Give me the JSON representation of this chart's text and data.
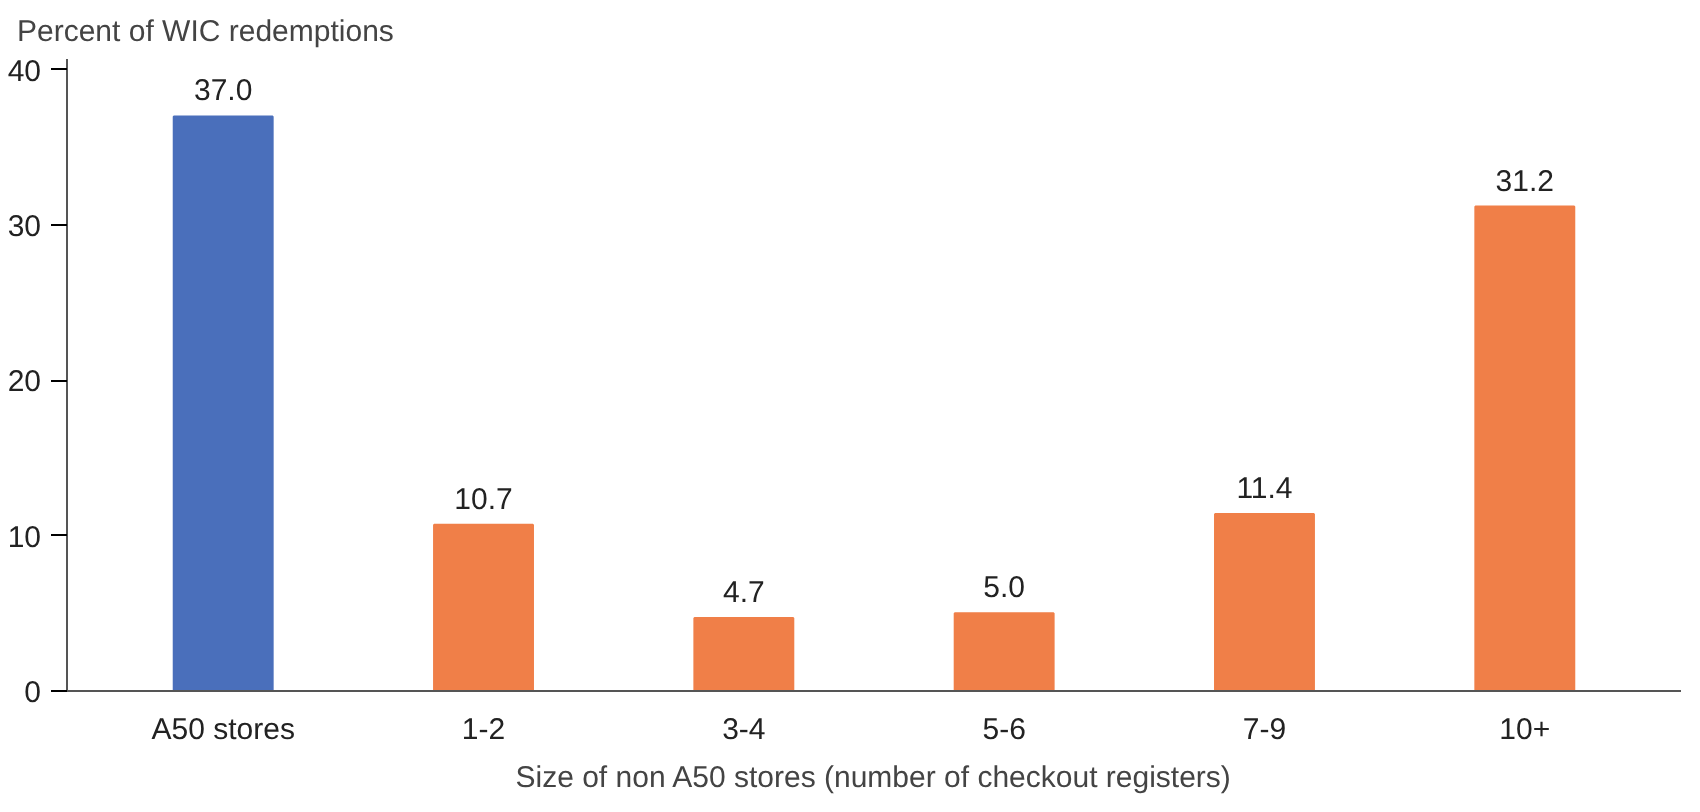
{
  "chart_data": {
    "type": "bar",
    "ylabel": "Percent of WIC redemptions",
    "xlabel": "Size of non A50 stores (number of checkout registers)",
    "categories": [
      "A50 stores",
      "1-2",
      "3-4",
      "5-6",
      "7-9",
      "10+"
    ],
    "values": [
      37.0,
      10.7,
      4.7,
      5.0,
      11.4,
      31.2
    ],
    "colors": [
      "#4a6fbb",
      "#f07f48",
      "#f07f48",
      "#f07f48",
      "#f07f48",
      "#f07f48"
    ],
    "value_labels": [
      "37.0",
      "10.7",
      "4.7",
      "5.0",
      "11.4",
      "31.2"
    ],
    "ylim": [
      0,
      40.7
    ],
    "yticks": [
      0,
      10,
      20,
      30,
      40
    ],
    "grid": false
  }
}
